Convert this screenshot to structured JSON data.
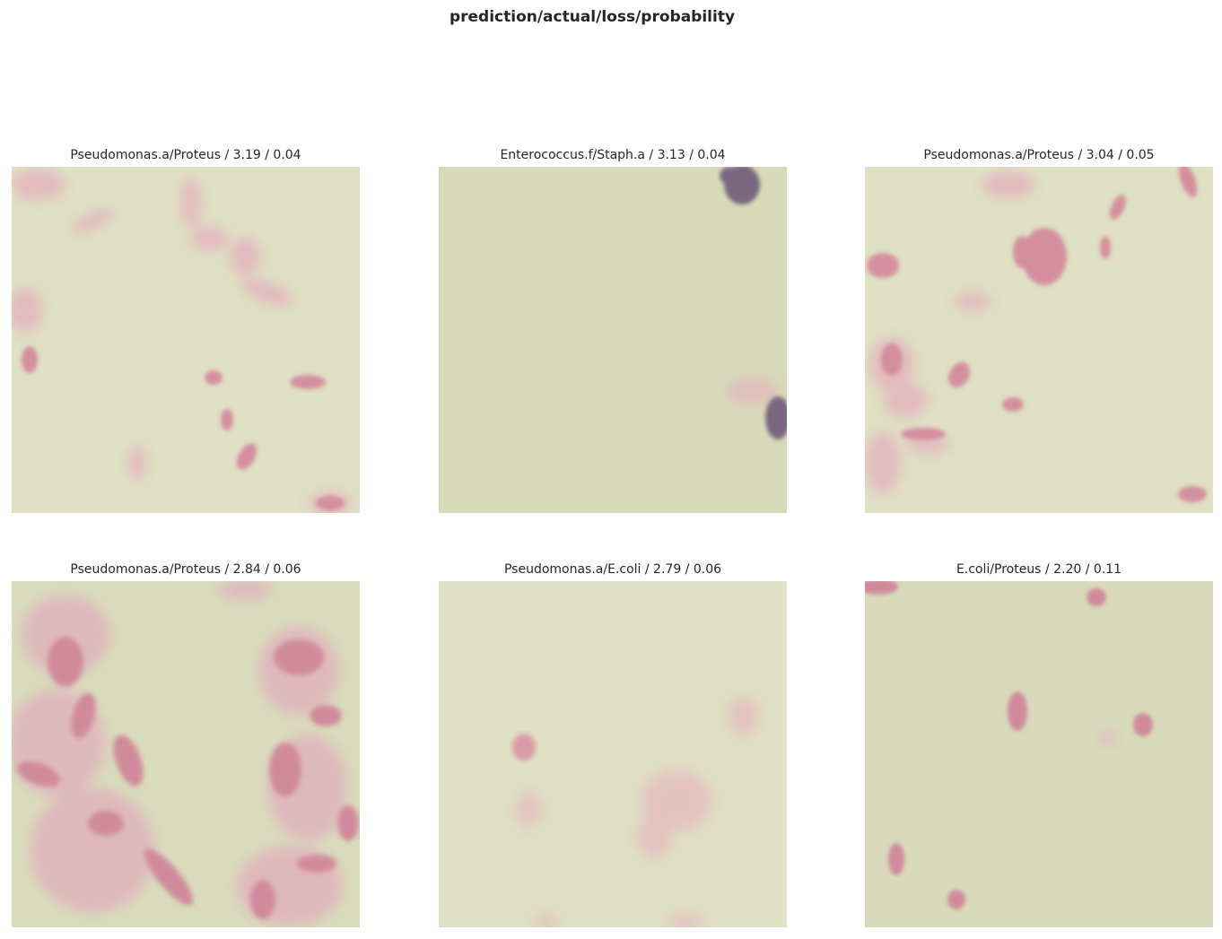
{
  "figure": {
    "title": "prediction/actual/loss/probability"
  },
  "panels": [
    {
      "title": "Pseudomonas.a/Proteus / 3.19 / 0.04",
      "prediction": "Pseudomonas.a",
      "actual": "Proteus",
      "loss": 3.19,
      "probability": 0.04
    },
    {
      "title": "Enterococcus.f/Staph.a / 3.13 / 0.04",
      "prediction": "Enterococcus.f",
      "actual": "Staph.a",
      "loss": 3.13,
      "probability": 0.04
    },
    {
      "title": "Pseudomonas.a/Proteus / 3.04 / 0.05",
      "prediction": "Pseudomonas.a",
      "actual": "Proteus",
      "loss": 3.04,
      "probability": 0.05
    },
    {
      "title": "Pseudomonas.a/Proteus / 2.84 / 0.06",
      "prediction": "Pseudomonas.a",
      "actual": "Proteus",
      "loss": 2.84,
      "probability": 0.06
    },
    {
      "title": "Pseudomonas.a/E.coli / 2.79 / 0.06",
      "prediction": "Pseudomonas.a",
      "actual": "E.coli",
      "loss": 2.79,
      "probability": 0.06
    },
    {
      "title": "E.coli/Proteus / 2.20 / 0.11",
      "prediction": "E.coli",
      "actual": "Proteus",
      "loss": 2.2,
      "probability": 0.11
    }
  ],
  "colors": {
    "background_light": "#dfe0c4",
    "background_green": "#d6dab9",
    "cell_pink": "#d99aa8",
    "cell_dark": "#7a6680"
  }
}
